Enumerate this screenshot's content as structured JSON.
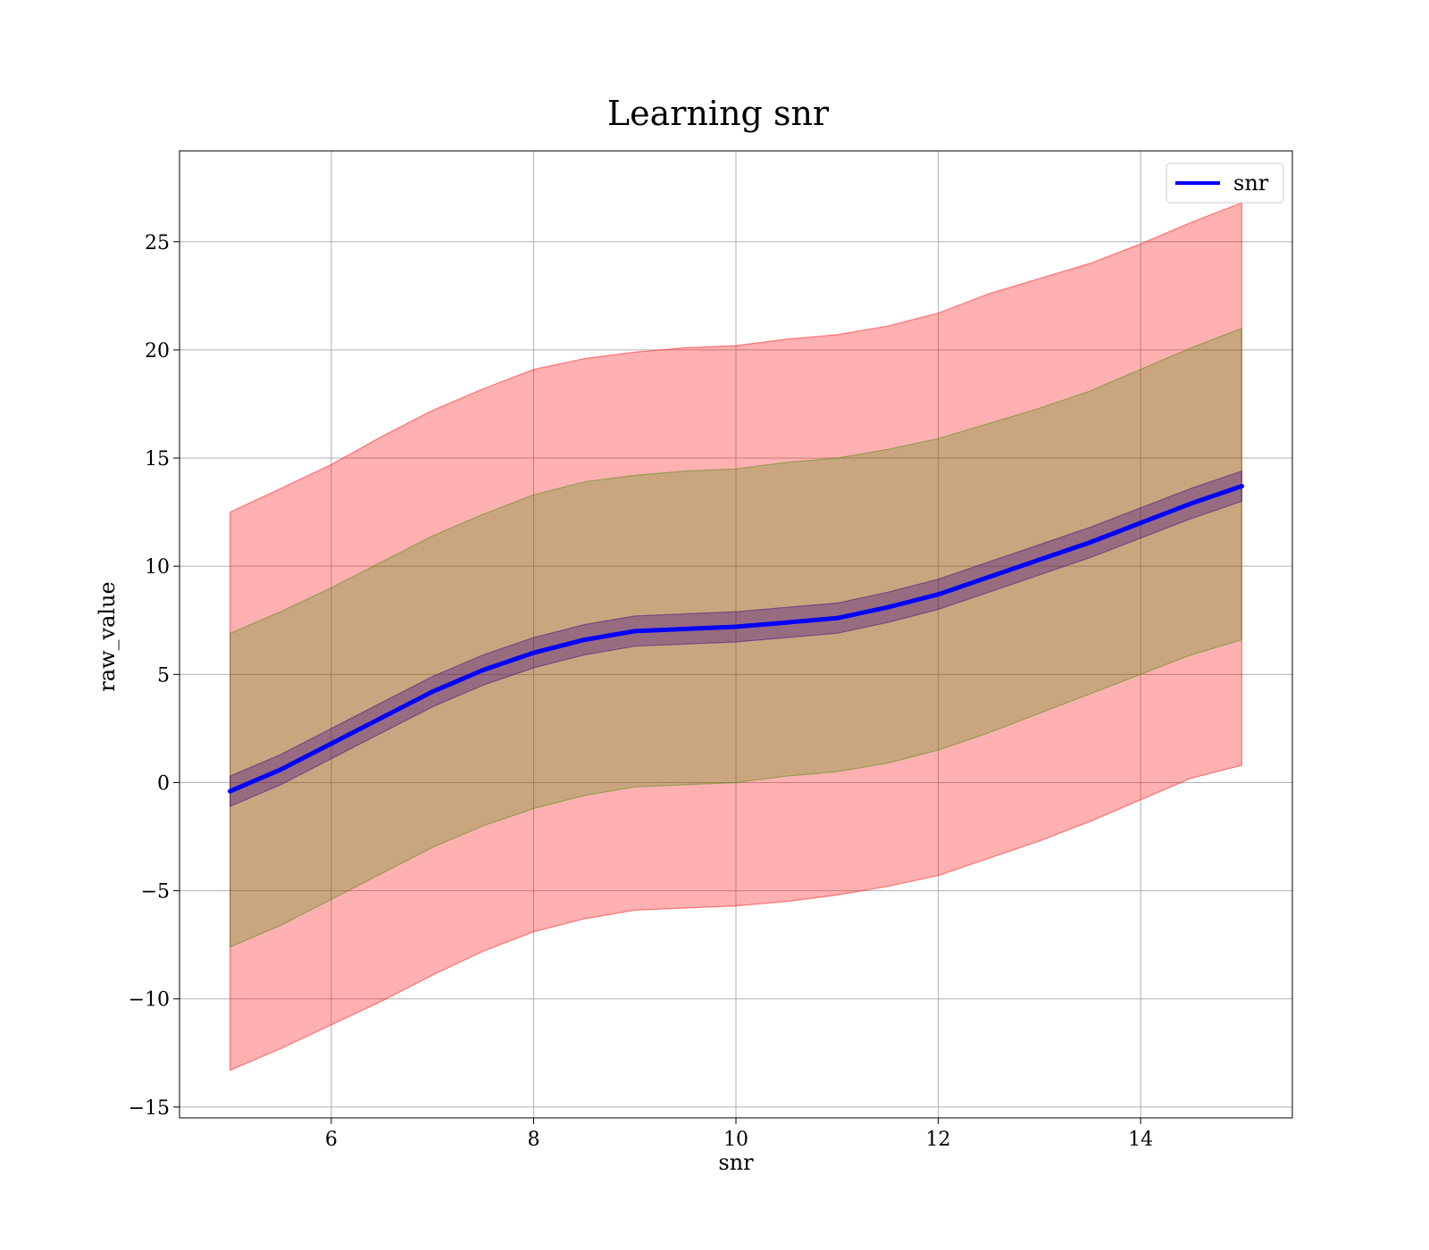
{
  "chart_data": {
    "type": "line",
    "title": "Learning snr",
    "xlabel": "snr",
    "ylabel": "raw_value",
    "xlim": [
      4.5,
      15.5
    ],
    "ylim": [
      -15.5,
      29.2
    ],
    "xticks": [
      6,
      8,
      10,
      12,
      14
    ],
    "yticks": [
      -15,
      -10,
      -5,
      0,
      5,
      10,
      15,
      20,
      25
    ],
    "ytick_labels": [
      "−15",
      "−10",
      "−5",
      "0",
      "5",
      "10",
      "15",
      "20",
      "25"
    ],
    "xtick_labels": [
      "6",
      "8",
      "10",
      "12",
      "14"
    ],
    "grid": true,
    "legend": {
      "position": "top-right",
      "entries": [
        {
          "label": "snr",
          "color": "#0000ff"
        }
      ]
    },
    "x": [
      5.0,
      5.5,
      6.0,
      6.5,
      7.0,
      7.5,
      8.0,
      8.5,
      9.0,
      9.5,
      10.0,
      10.5,
      11.0,
      11.5,
      12.0,
      12.5,
      13.0,
      13.5,
      14.0,
      14.5,
      15.0
    ],
    "series": [
      {
        "name": "snr",
        "color": "#0000ff",
        "values": [
          -0.4,
          0.6,
          1.8,
          3.0,
          4.2,
          5.2,
          6.0,
          6.6,
          7.0,
          7.1,
          7.2,
          7.4,
          7.6,
          8.1,
          8.7,
          9.5,
          10.3,
          11.1,
          12.0,
          12.9,
          13.7
        ]
      }
    ],
    "bands": [
      {
        "color": "#ff0000",
        "opacity": 0.31,
        "upper": [
          12.5,
          13.6,
          14.7,
          16.0,
          17.2,
          18.2,
          19.1,
          19.6,
          19.9,
          20.1,
          20.2,
          20.5,
          20.7,
          21.1,
          21.7,
          22.6,
          23.3,
          24.0,
          24.9,
          25.9,
          26.8
        ],
        "lower": [
          -13.3,
          -12.3,
          -11.2,
          -10.1,
          -8.9,
          -7.8,
          -6.9,
          -6.3,
          -5.9,
          -5.8,
          -5.7,
          -5.5,
          -5.2,
          -4.8,
          -4.3,
          -3.5,
          -2.7,
          -1.8,
          -0.8,
          0.2,
          0.8
        ]
      },
      {
        "color": "#3c8c00",
        "opacity": 0.27,
        "upper": [
          6.9,
          7.9,
          9.0,
          10.2,
          11.4,
          12.4,
          13.3,
          13.9,
          14.2,
          14.4,
          14.5,
          14.8,
          15.0,
          15.4,
          15.9,
          16.6,
          17.3,
          18.1,
          19.1,
          20.1,
          21.0
        ],
        "lower": [
          -7.6,
          -6.6,
          -5.4,
          -4.2,
          -3.0,
          -2.0,
          -1.2,
          -0.6,
          -0.2,
          -0.1,
          0.0,
          0.3,
          0.5,
          0.9,
          1.5,
          2.3,
          3.2,
          4.1,
          5.0,
          5.9,
          6.6
        ]
      },
      {
        "color": "#3a0080",
        "opacity": 0.35,
        "upper": [
          0.3,
          1.3,
          2.5,
          3.7,
          4.9,
          5.9,
          6.7,
          7.3,
          7.7,
          7.8,
          7.9,
          8.1,
          8.3,
          8.8,
          9.4,
          10.2,
          11.0,
          11.8,
          12.7,
          13.6,
          14.4
        ],
        "lower": [
          -1.1,
          -0.1,
          1.1,
          2.3,
          3.5,
          4.5,
          5.3,
          5.9,
          6.3,
          6.4,
          6.5,
          6.7,
          6.9,
          7.4,
          8.0,
          8.8,
          9.6,
          10.4,
          11.3,
          12.2,
          13.0
        ]
      }
    ]
  }
}
